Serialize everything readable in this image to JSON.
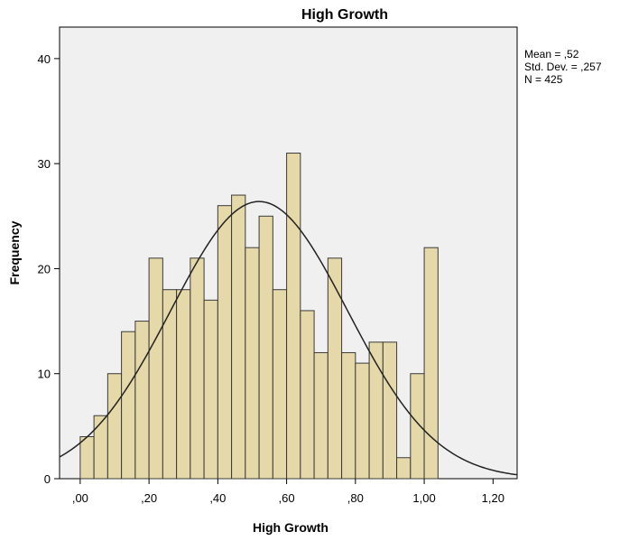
{
  "chart_data": {
    "type": "bar",
    "title": "High Growth",
    "xlabel": "High Growth",
    "ylabel": "Frequency",
    "xlim": [
      -0.06,
      1.27
    ],
    "ylim": [
      0,
      43
    ],
    "x_ticks": [
      0.0,
      0.2,
      0.4,
      0.6,
      0.8,
      1.0,
      1.2
    ],
    "x_tick_labels": [
      ",00",
      ",20",
      ",40",
      ",60",
      ",80",
      "1,00",
      "1,20"
    ],
    "y_ticks": [
      0,
      10,
      20,
      30,
      40
    ],
    "y_tick_labels": [
      "0",
      "10",
      "20",
      "30",
      "40"
    ],
    "bin_width": 0.04,
    "bins": [
      {
        "x": 0.0,
        "value": 4
      },
      {
        "x": 0.04,
        "value": 6
      },
      {
        "x": 0.08,
        "value": 10
      },
      {
        "x": 0.12,
        "value": 14
      },
      {
        "x": 0.16,
        "value": 15
      },
      {
        "x": 0.2,
        "value": 21
      },
      {
        "x": 0.24,
        "value": 18
      },
      {
        "x": 0.28,
        "value": 18
      },
      {
        "x": 0.32,
        "value": 21
      },
      {
        "x": 0.36,
        "value": 17
      },
      {
        "x": 0.4,
        "value": 26
      },
      {
        "x": 0.44,
        "value": 27
      },
      {
        "x": 0.48,
        "value": 22
      },
      {
        "x": 0.52,
        "value": 25
      },
      {
        "x": 0.56,
        "value": 18
      },
      {
        "x": 0.6,
        "value": 31
      },
      {
        "x": 0.64,
        "value": 16
      },
      {
        "x": 0.68,
        "value": 12
      },
      {
        "x": 0.72,
        "value": 21
      },
      {
        "x": 0.76,
        "value": 12
      },
      {
        "x": 0.8,
        "value": 11
      },
      {
        "x": 0.84,
        "value": 13
      },
      {
        "x": 0.88,
        "value": 13
      },
      {
        "x": 0.92,
        "value": 2
      },
      {
        "x": 0.96,
        "value": 10
      },
      {
        "x": 1.0,
        "value": 22
      }
    ],
    "normal_curve": {
      "mean": 0.52,
      "std": 0.257,
      "n": 425,
      "bin_width": 0.04
    },
    "stats": {
      "mean": "Mean = ,52",
      "std_dev": "Std. Dev. = ,257",
      "n": "N = 425"
    },
    "colors": {
      "bar_fill": "#e5d8a9",
      "bar_stroke": "#3a3a3a",
      "plot_bg": "#f0f0f0",
      "curve": "#222222"
    },
    "grid": false,
    "legend": "none"
  }
}
